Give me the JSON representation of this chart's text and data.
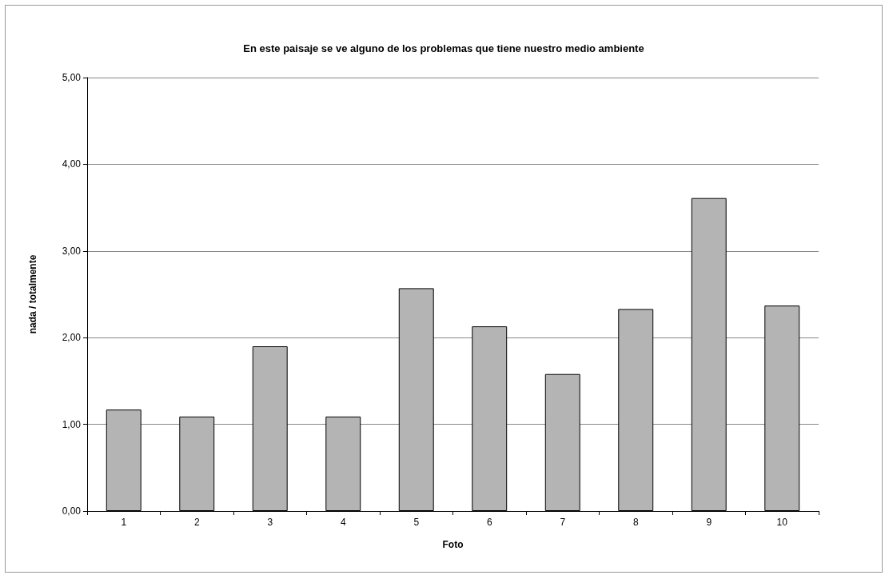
{
  "chart_data": {
    "type": "bar",
    "title": "En este paisaje se ve alguno de los problemas que tiene nuestro medio ambiente",
    "xlabel": "Foto",
    "ylabel": "nada / totalmente",
    "categories": [
      "1",
      "2",
      "3",
      "4",
      "5",
      "6",
      "7",
      "8",
      "9",
      "10"
    ],
    "values": [
      1.17,
      1.09,
      1.9,
      1.09,
      2.57,
      2.13,
      1.58,
      2.33,
      3.61,
      2.37
    ],
    "color": "#b4b4b4",
    "ylim": [
      0,
      5
    ],
    "yticks": [
      {
        "value": 0,
        "label": "0,00"
      },
      {
        "value": 1,
        "label": "1,00"
      },
      {
        "value": 2,
        "label": "2,00"
      },
      {
        "value": 3,
        "label": "3,00"
      },
      {
        "value": 4,
        "label": "4,00"
      },
      {
        "value": 5,
        "label": "5,00"
      }
    ],
    "grid": "y"
  }
}
